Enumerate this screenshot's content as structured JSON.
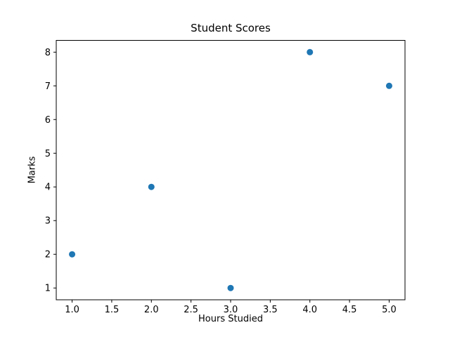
{
  "chart_data": {
    "type": "scatter",
    "title": "Student Scores",
    "xlabel": "Hours Studied",
    "ylabel": "Marks",
    "x": [
      1,
      2,
      3,
      4,
      5
    ],
    "y": [
      2,
      4,
      1,
      8,
      7
    ],
    "xlim": [
      0.8,
      5.2
    ],
    "ylim": [
      0.65,
      8.35
    ],
    "x_ticks": [
      1.0,
      1.5,
      2.0,
      2.5,
      3.0,
      3.5,
      4.0,
      4.5,
      5.0
    ],
    "x_tick_labels": [
      "1.0",
      "1.5",
      "2.0",
      "2.5",
      "3.0",
      "3.5",
      "4.0",
      "4.5",
      "5.0"
    ],
    "y_ticks": [
      1,
      2,
      3,
      4,
      5,
      6,
      7,
      8
    ],
    "y_tick_labels": [
      "1",
      "2",
      "3",
      "4",
      "5",
      "6",
      "7",
      "8"
    ],
    "grid": false,
    "legend": "none",
    "marker_color": "#1f77b4",
    "marker_radius_px": 4.5,
    "axis_color": "#000000",
    "background_color": "#ffffff"
  }
}
